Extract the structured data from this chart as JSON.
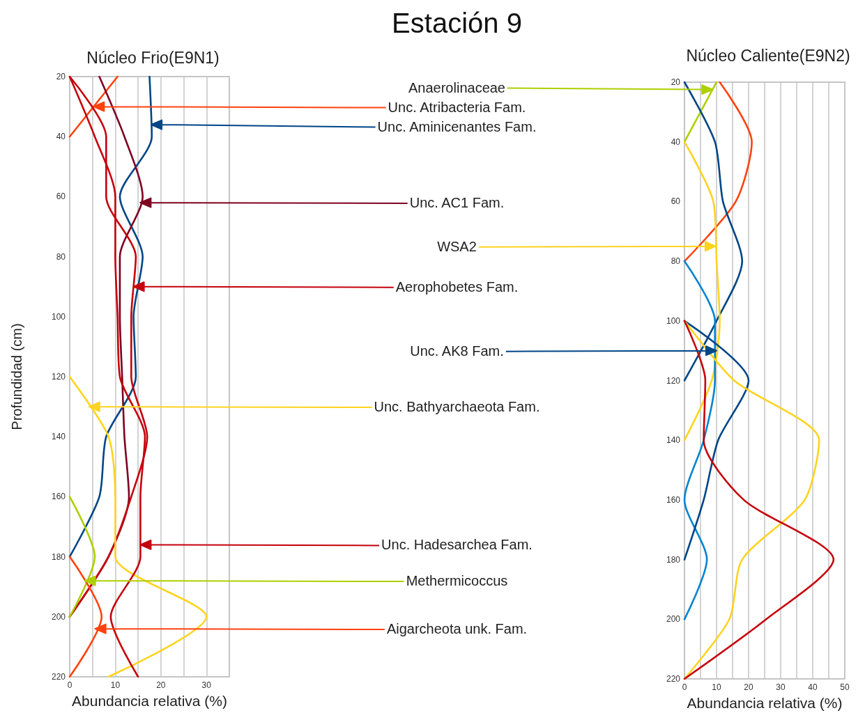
{
  "chart_data": [
    {
      "type": "line",
      "title": "Núcleo Frio(E9N1)",
      "xlabel": "Abundancia relativa (%)",
      "ylabel": "Profundidad (cm)",
      "xlim": [
        0,
        35
      ],
      "xticks": [
        0,
        {
          "value": 5,
          "label": null
        },
        10,
        {
          "value": 15,
          "label": null
        },
        20,
        {
          "value": 25,
          "label": null
        },
        30,
        {
          "value": 35,
          "label": null
        }
      ],
      "ylim": [
        220,
        20
      ],
      "yticks": [
        20,
        40,
        60,
        80,
        100,
        120,
        140,
        160,
        180,
        200,
        220
      ],
      "grid": "x",
      "marker": "none",
      "series": [
        {
          "color": "#ff420e",
          "x": [
            10.5,
            0
          ],
          "values": [
            20,
            40
          ]
        },
        {
          "color": "#004586",
          "x": [
            17.5,
            18,
            11,
            16,
            14,
            14.5,
            8,
            6.5,
            0
          ],
          "values": [
            20,
            40,
            60,
            80,
            100,
            120,
            140,
            160,
            180
          ]
        },
        {
          "color": "#7e0021",
          "x": [
            6.5,
            12,
            16,
            11,
            11,
            11.5,
            12,
            13,
            8.5,
            0
          ],
          "values": [
            20,
            40,
            60,
            80,
            100,
            120,
            140,
            160,
            180,
            200
          ]
        },
        {
          "color": "#c5000b",
          "x": [
            0,
            8,
            8,
            14.5,
            13.5,
            13.5,
            17,
            13.5,
            8.5,
            0
          ],
          "values": [
            20,
            40,
            60,
            80,
            100,
            120,
            140,
            160,
            180,
            200
          ]
        },
        {
          "color": "#ffd320",
          "x": [
            0,
            8.5,
            10,
            10,
            30,
            8.5
          ],
          "values": [
            120,
            140,
            160,
            180,
            200,
            220
          ]
        },
        {
          "color": "#c5000b",
          "x": [
            0,
            5.5,
            10,
            10,
            10.5,
            11,
            16.5,
            15.5,
            15.5,
            9,
            15
          ],
          "values": [
            20,
            40,
            60,
            80,
            100,
            120,
            140,
            160,
            180,
            200,
            220
          ]
        },
        {
          "color": "#aecf00",
          "x": [
            0,
            5.5,
            0
          ],
          "values": [
            160,
            180,
            200
          ]
        },
        {
          "color": "#ff420e",
          "x": [
            0,
            7,
            0
          ],
          "values": [
            180,
            200,
            220
          ]
        }
      ],
      "annotations": [
        "Estación 9",
        {
          "text": "Unc. Atribacteria Fam.",
          "x": 5.25,
          "y": 30
        },
        {
          "text": "Unc. Aminicenantes Fam.",
          "x": 17.9,
          "y": 36
        },
        {
          "text": "Unc. AC1 Fam.",
          "x": 15.5,
          "y": 62
        },
        {
          "text": "Aerophobetes Fam.",
          "x": 14,
          "y": 90
        },
        {
          "text": "Unc. Bathyarchaeota Fam.",
          "x": 4.25,
          "y": 130
        },
        {
          "text": "Unc. Hadesarchea Fam.",
          "x": 15.5,
          "y": 176
        },
        {
          "text": "Methermicoccus",
          "x": 3.3,
          "y": 188
        },
        {
          "text": "Aigarcheota unk. Fam.",
          "x": 5.6,
          "y": 204
        }
      ]
    },
    {
      "type": "line",
      "title": "Núcleo Caliente(E9N2)",
      "xlabel": "Abundancia relativa (%)",
      "xlim": [
        0,
        50
      ],
      "xticks": [
        0,
        {
          "value": 5,
          "label": null
        },
        10,
        {
          "value": 15,
          "label": null
        },
        20,
        {
          "value": 25,
          "label": null
        },
        30,
        {
          "value": 35,
          "label": null
        },
        40,
        {
          "value": 45,
          "label": null
        },
        50
      ],
      "ylim": [
        220,
        20
      ],
      "yticks": [
        20,
        40,
        60,
        80,
        100,
        120,
        140,
        160,
        180,
        200,
        220
      ],
      "grid": "x",
      "marker": "none",
      "series": [
        {
          "color": "#aecf00",
          "x": [
            10,
            0
          ],
          "values": [
            20,
            40
          ]
        },
        {
          "color": "#ff420e",
          "x": [
            11,
            21,
            16,
            0
          ],
          "values": [
            20,
            40,
            60,
            80
          ]
        },
        {
          "color": "#004586",
          "x": [
            0,
            9.5,
            12,
            18,
            10,
            0
          ],
          "values": [
            20,
            40,
            60,
            80,
            100,
            120
          ]
        },
        {
          "color": "#ffd320",
          "x": [
            0,
            9,
            10,
            11,
            8.5,
            0
          ],
          "values": [
            40,
            60,
            80,
            100,
            120,
            140
          ]
        },
        {
          "color": "#0084d1",
          "x": [
            0,
            9.5,
            9.5,
            6,
            0,
            7,
            0
          ],
          "values": [
            80,
            100,
            120,
            140,
            160,
            180,
            200
          ]
        },
        {
          "color": "#004586",
          "x": [
            0,
            20,
            10.5,
            6,
            0
          ],
          "values": [
            100,
            120,
            140,
            160,
            180
          ]
        },
        {
          "color": "#ffd320",
          "x": [
            0,
            15.5,
            42,
            37.5,
            18,
            14,
            0
          ],
          "values": [
            100,
            120,
            140,
            160,
            180,
            200,
            220
          ]
        },
        {
          "color": "#c5000b",
          "x": [
            0,
            6.5,
            6,
            18.5,
            46.5,
            25.5,
            0
          ],
          "values": [
            100,
            120,
            140,
            160,
            180,
            200,
            220
          ]
        }
      ],
      "annotations": [
        {
          "text": "Anaerolinaceae",
          "x": 8.75,
          "y": 22.5
        },
        {
          "text": "WSA2",
          "x": 9.75,
          "y": 75
        },
        {
          "text": "Unc. AK8 Fam.",
          "x": 10,
          "y": 110
        }
      ]
    }
  ]
}
